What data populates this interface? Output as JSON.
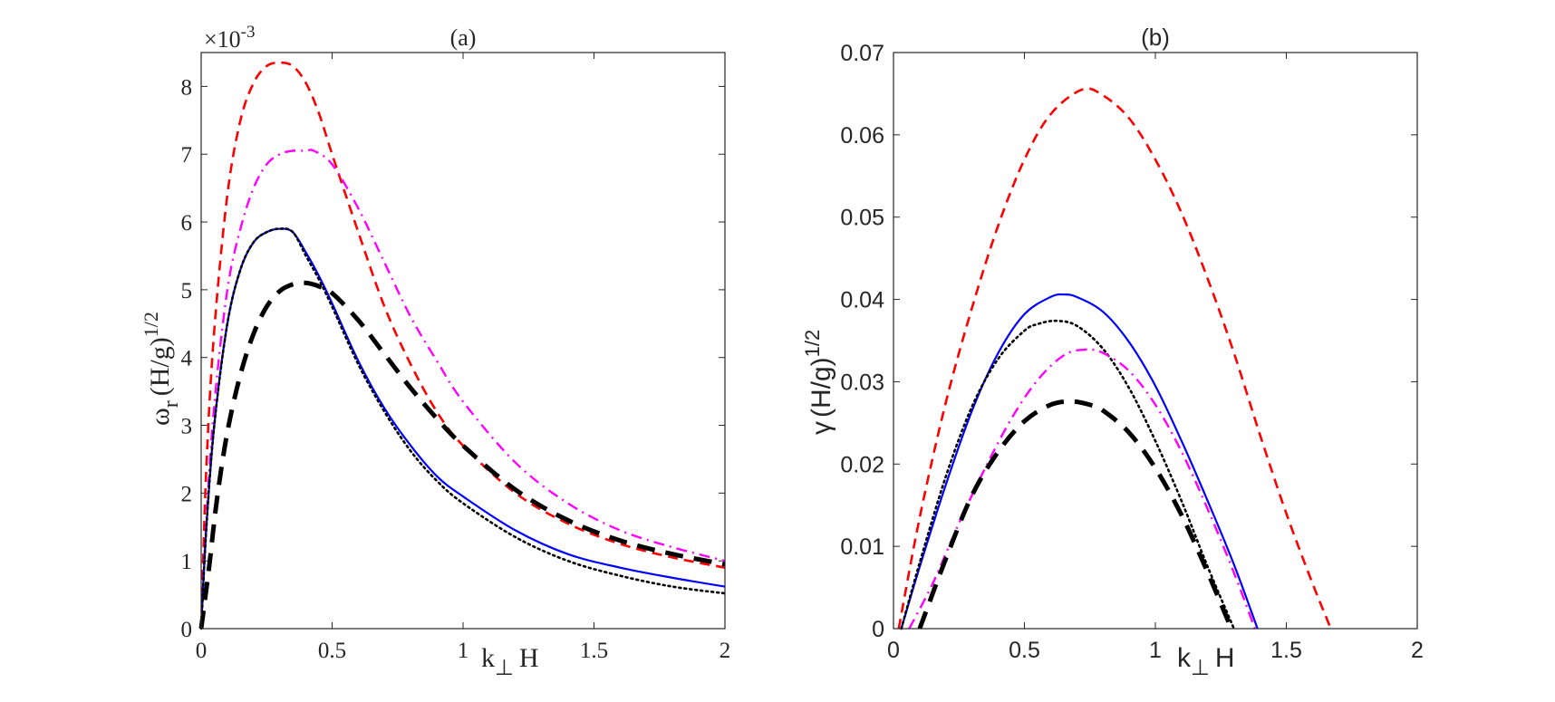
{
  "chart_data": [
    {
      "id": "panel-a",
      "type": "line",
      "title": "(a)",
      "xlabel": "k",
      "xlabel_sub": "⊥",
      "xlabel_tail": "H",
      "ylabel": "ω",
      "ylabel_sub": "r",
      "ylabel_tail": "(H/g)",
      "ylabel_sup": "1/2",
      "exponent_label": "×10",
      "exponent_sup": "-3",
      "xlim": [
        0,
        2
      ],
      "ylim": [
        0,
        8.5
      ],
      "xticks": [
        0,
        0.5,
        1,
        1.5,
        2
      ],
      "xtick_labels": [
        "0",
        "0.5",
        "1",
        "1.5",
        "2"
      ],
      "yticks": [
        0,
        1,
        2,
        3,
        4,
        5,
        6,
        7,
        8
      ],
      "ytick_labels": [
        "0",
        "1",
        "2",
        "3",
        "4",
        "5",
        "6",
        "7",
        "8"
      ],
      "series": [
        {
          "name": "red-dashed",
          "color": "#ff0000",
          "style": "dashed",
          "width": 2.6,
          "x": [
            0,
            0.02,
            0.05,
            0.1,
            0.15,
            0.2,
            0.25,
            0.3,
            0.35,
            0.4,
            0.45,
            0.5,
            0.6,
            0.7,
            0.8,
            0.9,
            1.0,
            1.2,
            1.4,
            1.6,
            1.8,
            2.0
          ],
          "y": [
            0,
            2.4,
            4.4,
            6.4,
            7.5,
            8.05,
            8.3,
            8.35,
            8.3,
            8.05,
            7.6,
            7.0,
            5.85,
            4.75,
            3.9,
            3.2,
            2.7,
            2.0,
            1.55,
            1.25,
            1.05,
            0.9
          ]
        },
        {
          "name": "magenta-dashdot",
          "color": "#ff00ff",
          "style": "dashdot",
          "width": 2.4,
          "x": [
            0,
            0.02,
            0.05,
            0.1,
            0.15,
            0.2,
            0.25,
            0.3,
            0.35,
            0.4,
            0.43,
            0.5,
            0.6,
            0.7,
            0.8,
            0.9,
            1.0,
            1.2,
            1.4,
            1.6,
            1.8,
            2.0
          ],
          "y": [
            0,
            1.6,
            3.3,
            5.0,
            5.9,
            6.5,
            6.85,
            7.0,
            7.05,
            7.05,
            7.05,
            6.85,
            6.2,
            5.4,
            4.6,
            3.95,
            3.35,
            2.45,
            1.85,
            1.45,
            1.2,
            1.0
          ]
        },
        {
          "name": "blue-solid",
          "color": "#0000ff",
          "style": "solid",
          "width": 2.2,
          "x": [
            0,
            0.02,
            0.05,
            0.1,
            0.15,
            0.2,
            0.25,
            0.3,
            0.35,
            0.4,
            0.45,
            0.5,
            0.6,
            0.7,
            0.8,
            0.9,
            1.0,
            1.2,
            1.4,
            1.6,
            1.8,
            2.0
          ],
          "y": [
            0,
            1.5,
            3.0,
            4.5,
            5.3,
            5.7,
            5.85,
            5.9,
            5.85,
            5.55,
            5.2,
            4.8,
            3.95,
            3.25,
            2.7,
            2.25,
            1.95,
            1.45,
            1.1,
            0.9,
            0.75,
            0.62
          ]
        },
        {
          "name": "black-dotted",
          "color": "#000000",
          "style": "dotted",
          "width": 2.6,
          "x": [
            0,
            0.02,
            0.05,
            0.1,
            0.15,
            0.2,
            0.25,
            0.3,
            0.35,
            0.4,
            0.45,
            0.5,
            0.6,
            0.7,
            0.8,
            0.9,
            1.0,
            1.2,
            1.4,
            1.6,
            1.8,
            2.0
          ],
          "y": [
            0,
            1.5,
            3.0,
            4.5,
            5.3,
            5.7,
            5.85,
            5.9,
            5.85,
            5.5,
            5.15,
            4.75,
            3.9,
            3.2,
            2.62,
            2.18,
            1.85,
            1.35,
            1.0,
            0.78,
            0.62,
            0.52
          ]
        },
        {
          "name": "black-thick-dashed",
          "color": "#000000",
          "style": "longdash",
          "width": 5,
          "x": [
            0,
            0.03,
            0.06,
            0.1,
            0.15,
            0.2,
            0.25,
            0.3,
            0.35,
            0.4,
            0.45,
            0.5,
            0.6,
            0.7,
            0.8,
            0.9,
            1.0,
            1.2,
            1.4,
            1.6,
            1.8,
            2.0
          ],
          "y": [
            0,
            0.9,
            1.9,
            2.9,
            3.75,
            4.35,
            4.75,
            4.98,
            5.08,
            5.1,
            5.05,
            4.95,
            4.55,
            4.05,
            3.55,
            3.1,
            2.7,
            2.05,
            1.6,
            1.3,
            1.1,
            0.95
          ]
        }
      ]
    },
    {
      "id": "panel-b",
      "type": "line",
      "title": "(b)",
      "xlabel": "k",
      "xlabel_sub": "⊥",
      "xlabel_tail": "H",
      "ylabel": "γ",
      "ylabel_tail": "(H/g)",
      "ylabel_sup": "1/2",
      "xlim": [
        0,
        2
      ],
      "ylim": [
        0,
        0.07
      ],
      "xticks": [
        0,
        0.5,
        1,
        1.5,
        2
      ],
      "xtick_labels": [
        "0",
        "0.5",
        "1",
        "1.5",
        "2"
      ],
      "yticks": [
        0,
        0.01,
        0.02,
        0.03,
        0.04,
        0.05,
        0.06,
        0.07
      ],
      "ytick_labels": [
        "0",
        "0.01",
        "0.02",
        "0.03",
        "0.04",
        "0.05",
        "0.06",
        "0.07"
      ],
      "series": [
        {
          "name": "red-dashed",
          "color": "#ff0000",
          "style": "dashed",
          "width": 2.6,
          "x": [
            0.02,
            0.1,
            0.2,
            0.3,
            0.4,
            0.5,
            0.6,
            0.72,
            0.8,
            0.9,
            1.0,
            1.1,
            1.2,
            1.3,
            1.4,
            1.5,
            1.6,
            1.67
          ],
          "y": [
            0,
            0.0135,
            0.0275,
            0.039,
            0.049,
            0.057,
            0.0625,
            0.0655,
            0.0648,
            0.062,
            0.057,
            0.0505,
            0.0425,
            0.0335,
            0.0235,
            0.014,
            0.0055,
            0
          ]
        },
        {
          "name": "blue-solid",
          "color": "#0000ff",
          "style": "solid",
          "width": 2.2,
          "x": [
            0.03,
            0.1,
            0.2,
            0.3,
            0.4,
            0.5,
            0.6,
            0.65,
            0.7,
            0.8,
            0.9,
            1.0,
            1.1,
            1.2,
            1.3,
            1.39
          ],
          "y": [
            0,
            0.0075,
            0.0175,
            0.0265,
            0.0335,
            0.0382,
            0.0403,
            0.0406,
            0.0403,
            0.0385,
            0.0348,
            0.0295,
            0.0228,
            0.0155,
            0.0078,
            0
          ]
        },
        {
          "name": "black-dotted",
          "color": "#000000",
          "style": "dotted",
          "width": 2.6,
          "x": [
            0.03,
            0.1,
            0.2,
            0.3,
            0.4,
            0.5,
            0.55,
            0.62,
            0.7,
            0.8,
            0.9,
            1.0,
            1.1,
            1.2,
            1.3
          ],
          "y": [
            0,
            0.008,
            0.0185,
            0.027,
            0.0328,
            0.0362,
            0.037,
            0.0374,
            0.0368,
            0.034,
            0.0292,
            0.0228,
            0.0155,
            0.0075,
            0
          ]
        },
        {
          "name": "magenta-dashdot",
          "color": "#ff00ff",
          "style": "dashdot",
          "width": 2.4,
          "x": [
            0.06,
            0.15,
            0.25,
            0.35,
            0.45,
            0.55,
            0.65,
            0.73,
            0.8,
            0.9,
            1.0,
            1.1,
            1.2,
            1.3,
            1.38
          ],
          "y": [
            0,
            0.0055,
            0.0128,
            0.0195,
            0.0255,
            0.0302,
            0.0332,
            0.0339,
            0.0335,
            0.0313,
            0.0272,
            0.0215,
            0.0145,
            0.0068,
            0
          ]
        },
        {
          "name": "black-thick-dashed",
          "color": "#000000",
          "style": "longdash",
          "width": 5,
          "x": [
            0.1,
            0.2,
            0.3,
            0.4,
            0.5,
            0.6,
            0.68,
            0.75,
            0.8,
            0.9,
            1.0,
            1.1,
            1.2,
            1.29
          ],
          "y": [
            0,
            0.0085,
            0.0162,
            0.0215,
            0.0252,
            0.0272,
            0.0276,
            0.0272,
            0.0265,
            0.0238,
            0.0195,
            0.0138,
            0.0068,
            0
          ]
        }
      ]
    }
  ]
}
